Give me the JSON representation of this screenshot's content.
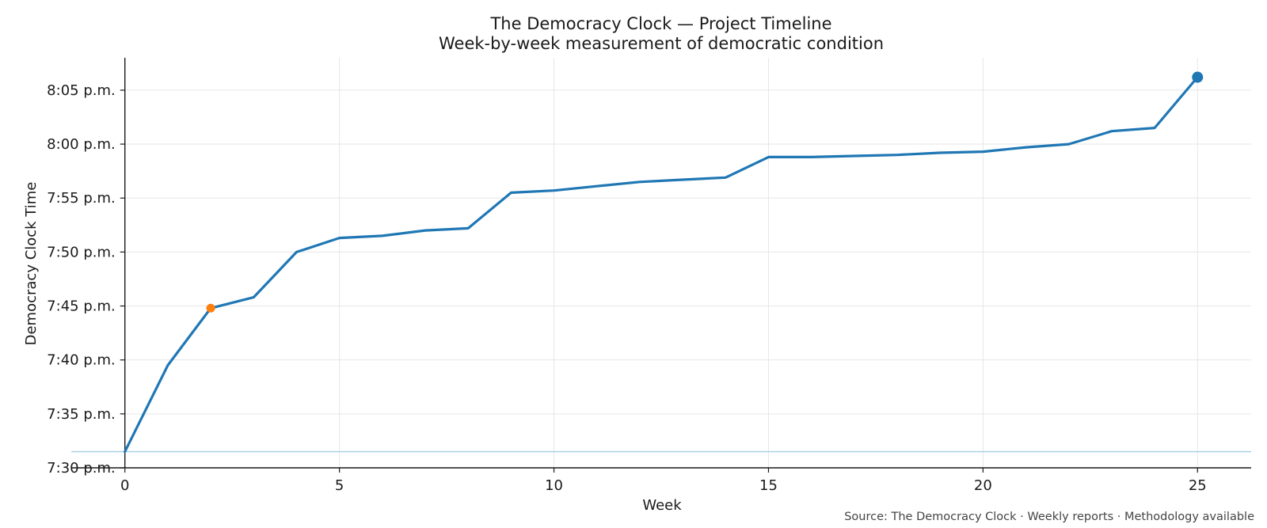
{
  "chart_data": {
    "type": "line",
    "title": "The Democracy Clock — Project Timeline",
    "subtitle": "Week-by-week measurement of democratic condition",
    "xlabel": "Week",
    "ylabel": "Democracy Clock Time",
    "xlim": [
      -1.25,
      26.25
    ],
    "ylim": [
      450,
      488
    ],
    "x_ticks": [
      0,
      5,
      10,
      15,
      20,
      25
    ],
    "y_ticks": [
      {
        "value": 450,
        "label": "7:30 p.m."
      },
      {
        "value": 455,
        "label": "7:35 p.m."
      },
      {
        "value": 460,
        "label": "7:40 p.m."
      },
      {
        "value": 465,
        "label": "7:45 p.m."
      },
      {
        "value": 470,
        "label": "7:50 p.m."
      },
      {
        "value": 475,
        "label": "7:55 p.m."
      },
      {
        "value": 480,
        "label": "8:00 p.m."
      },
      {
        "value": 485,
        "label": "8:05 p.m."
      }
    ],
    "grid": true,
    "baseline": 451.5,
    "series": [
      {
        "color": "#1f77b4",
        "points": [
          {
            "x": 0,
            "y": 451.5
          },
          {
            "x": 1,
            "y": 459.5
          },
          {
            "x": 2,
            "y": 464.8
          },
          {
            "x": 3,
            "y": 465.8
          },
          {
            "x": 4,
            "y": 470.0
          },
          {
            "x": 5,
            "y": 471.3
          },
          {
            "x": 6,
            "y": 471.5
          },
          {
            "x": 7,
            "y": 472.0
          },
          {
            "x": 8,
            "y": 472.2
          },
          {
            "x": 9,
            "y": 475.5
          },
          {
            "x": 10,
            "y": 475.7
          },
          {
            "x": 11,
            "y": 476.1
          },
          {
            "x": 12,
            "y": 476.5
          },
          {
            "x": 13,
            "y": 476.7
          },
          {
            "x": 14,
            "y": 476.9
          },
          {
            "x": 15,
            "y": 478.8
          },
          {
            "x": 16,
            "y": 478.8
          },
          {
            "x": 17,
            "y": 478.9
          },
          {
            "x": 18,
            "y": 479.0
          },
          {
            "x": 19,
            "y": 479.2
          },
          {
            "x": 20,
            "y": 479.3
          },
          {
            "x": 21,
            "y": 479.7
          },
          {
            "x": 22,
            "y": 480.0
          },
          {
            "x": 23,
            "y": 481.2
          },
          {
            "x": 24,
            "y": 481.5
          },
          {
            "x": 25,
            "y": 486.2
          }
        ]
      }
    ],
    "highlights": [
      {
        "x": 2,
        "y": 464.8,
        "color": "#ff7f0e"
      },
      {
        "x": 25,
        "y": 486.2,
        "color": "#1f77b4"
      }
    ],
    "colors": {
      "line": "#1f77b4",
      "baseline": "#a6cde3",
      "highlight": "#ff7f0e"
    },
    "source": "Source: The Democracy Clock · Weekly reports · Methodology available"
  }
}
